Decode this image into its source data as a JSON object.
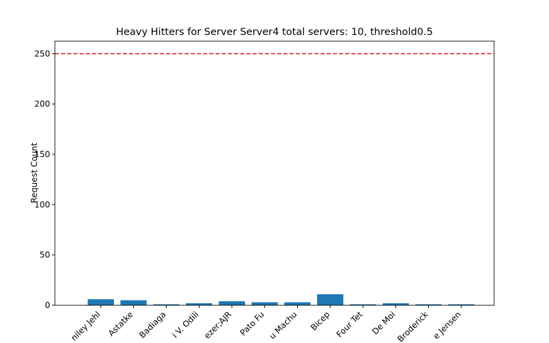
{
  "chart_data": {
    "type": "bar",
    "title": "Heavy Hitters for Server Server4 total servers: 10, threshold0.5",
    "y_label": "Request Count",
    "categories": [
      "niley Jehl",
      "Astatke",
      "Badiaga",
      "i V. Odili",
      "ezer;AJR",
      "Pato Fu",
      "u Machu",
      "Bicep",
      "Four Tet",
      "De Moi",
      "Broderick",
      "e Jensen"
    ],
    "values": [
      6,
      5,
      1,
      2,
      4,
      3,
      3,
      11,
      1,
      2,
      1,
      1
    ],
    "color": "#1f77b4",
    "threshold": 250,
    "threshold_color": "#d62728",
    "ylim": [
      0,
      262.5
    ],
    "yticks": [
      0,
      50,
      100,
      150,
      200,
      250
    ]
  }
}
